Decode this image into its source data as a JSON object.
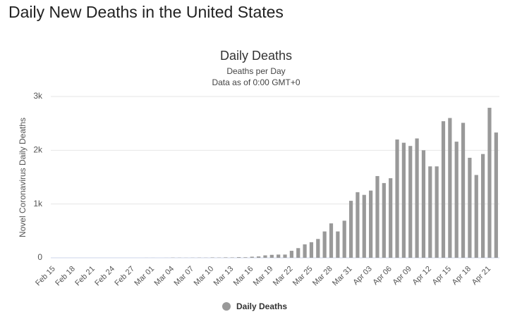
{
  "header": {
    "title": "Daily New Deaths in the United States"
  },
  "chart_data": {
    "type": "bar",
    "title": "Daily Deaths",
    "subtitle": [
      "Deaths per Day",
      "Data as of 0:00 GMT+0"
    ],
    "y_label": "Novel Coronavirus Daily Deaths",
    "categories": [
      "Feb 15",
      null,
      null,
      "Feb 18",
      null,
      null,
      "Feb 21",
      null,
      null,
      "Feb 24",
      null,
      null,
      "Feb 27",
      null,
      null,
      "Mar 01",
      null,
      null,
      "Mar 04",
      null,
      null,
      "Mar 07",
      null,
      null,
      "Mar 10",
      null,
      null,
      "Mar 13",
      null,
      null,
      "Mar 16",
      null,
      null,
      "Mar 19",
      null,
      null,
      "Mar 22",
      null,
      null,
      "Mar 25",
      null,
      null,
      "Mar 28",
      null,
      null,
      "Mar 31",
      null,
      null,
      "Apr 03",
      null,
      null,
      "Apr 06",
      null,
      null,
      "Apr 09",
      null,
      null,
      "Apr 12",
      null,
      null,
      "Apr 15",
      null,
      null,
      "Apr 18",
      null,
      null,
      "Apr 21",
      null
    ],
    "series": [
      {
        "name": "Daily Deaths",
        "color": "#999999",
        "values": [
          0,
          0,
          0,
          0,
          0,
          0,
          0,
          0,
          0,
          0,
          0,
          0,
          0,
          0,
          1,
          1,
          0,
          1,
          4,
          3,
          2,
          3,
          4,
          3,
          7,
          5,
          8,
          7,
          12,
          10,
          20,
          25,
          45,
          55,
          60,
          60,
          130,
          180,
          250,
          290,
          350,
          490,
          640,
          490,
          690,
          1060,
          1220,
          1170,
          1250,
          1520,
          1390,
          1480,
          2200,
          2140,
          2080,
          2220,
          2000,
          1700,
          1700,
          2540,
          2600,
          2160,
          2510,
          1860,
          1540,
          1930,
          2790,
          2330
        ]
      }
    ],
    "ylim": [
      0,
      3000
    ],
    "yticks": [
      {
        "value": 0,
        "label": "0"
      },
      {
        "value": 1000,
        "label": "1k"
      },
      {
        "value": 2000,
        "label": "2k"
      },
      {
        "value": 3000,
        "label": "3k"
      }
    ],
    "grid": true,
    "legend": "bottom"
  }
}
